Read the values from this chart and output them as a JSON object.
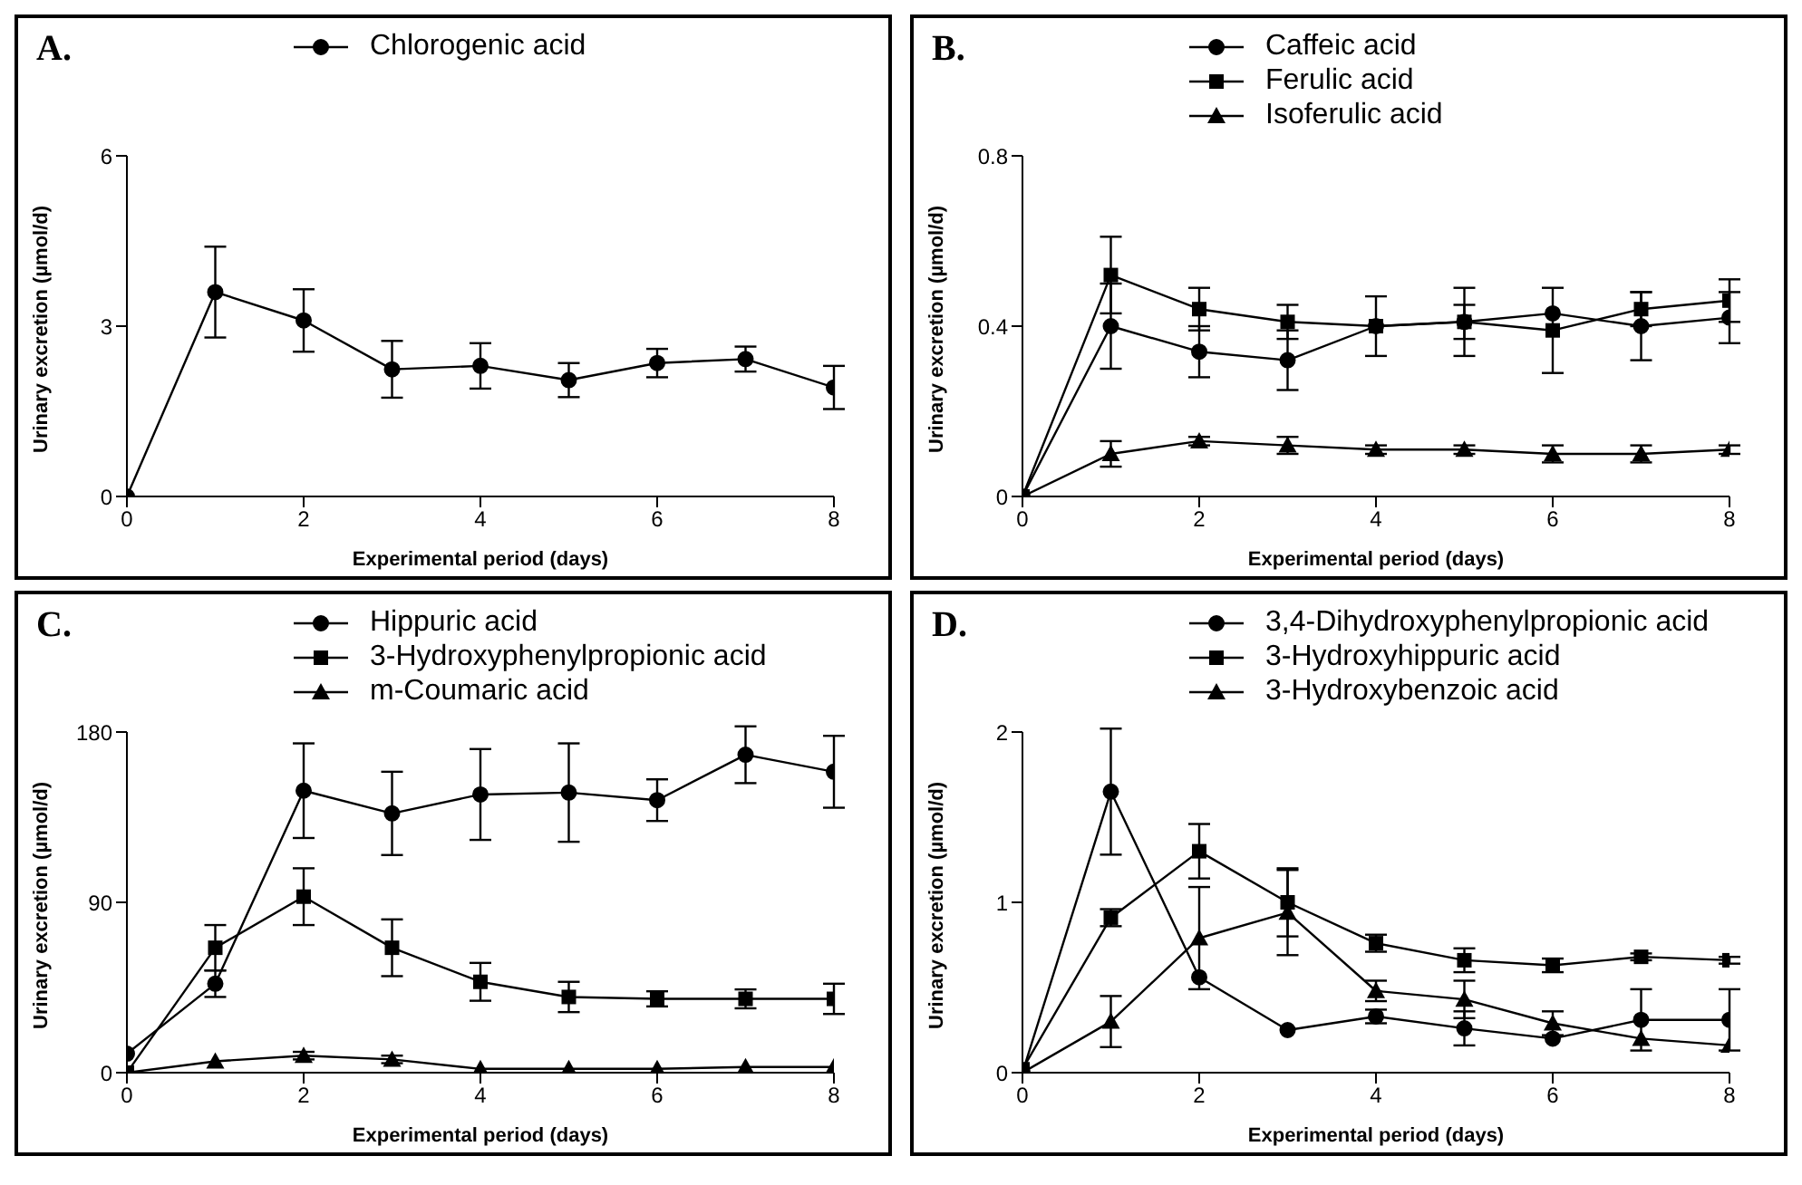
{
  "chart_data": [
    {
      "type": "line",
      "title": "A.",
      "xlabel": "Experimental period (days)",
      "ylabel": "Urinary excretion (µmol/d)",
      "x": [
        0,
        1,
        2,
        3,
        4,
        5,
        6,
        7,
        8
      ],
      "xlim": [
        0,
        8
      ],
      "xticks": [
        0,
        2,
        4,
        6,
        8
      ],
      "ylim": [
        0,
        6
      ],
      "yticks": [
        0,
        3,
        6
      ],
      "grid": false,
      "legend": "top",
      "series": [
        {
          "name": "Chlorogenic acid",
          "color": "#000000",
          "marker": "circle",
          "values": [
            0,
            3.6,
            3.1,
            2.24,
            2.3,
            2.05,
            2.35,
            2.42,
            1.92
          ],
          "errors": [
            null,
            0.8,
            0.55,
            0.5,
            0.4,
            0.3,
            0.25,
            0.22,
            0.38
          ]
        }
      ]
    },
    {
      "type": "line",
      "title": "B.",
      "xlabel": "Experimental period (days)",
      "ylabel": "Urinary excretion (µmol/d)",
      "x": [
        0,
        1,
        2,
        3,
        4,
        5,
        6,
        7,
        8
      ],
      "xlim": [
        0,
        8
      ],
      "xticks": [
        0,
        2,
        4,
        6,
        8
      ],
      "ylim": [
        0,
        0.8
      ],
      "yticks": [
        0,
        0.4,
        0.8
      ],
      "grid": false,
      "legend": "top",
      "series": [
        {
          "name": "Caffeic acid",
          "color": "#000000",
          "marker": "circle",
          "values": [
            0,
            0.4,
            0.34,
            0.32,
            0.4,
            0.41,
            0.43,
            0.4,
            0.42
          ],
          "errors": [
            null,
            0.1,
            0.06,
            0.07,
            null,
            0.08,
            null,
            0.08,
            0.06
          ]
        },
        {
          "name": "Ferulic acid",
          "color": "#000000",
          "marker": "square",
          "values": [
            0,
            0.52,
            0.44,
            0.41,
            0.4,
            0.41,
            0.39,
            0.44,
            0.46
          ],
          "errors": [
            null,
            0.09,
            0.05,
            0.04,
            0.07,
            0.04,
            0.1,
            0.04,
            0.05
          ]
        },
        {
          "name": "Isoferulic acid",
          "color": "#000000",
          "marker": "triangle",
          "values": [
            0,
            0.1,
            0.13,
            0.12,
            0.11,
            0.11,
            0.1,
            0.1,
            0.11
          ],
          "errors": [
            null,
            0.03,
            0.01,
            0.02,
            0.01,
            0.01,
            0.02,
            0.02,
            0.01
          ]
        }
      ]
    },
    {
      "type": "line",
      "title": "C.",
      "xlabel": "Experimental period (days)",
      "ylabel": "Urinary excretion (µmol/d)",
      "x": [
        0,
        1,
        2,
        3,
        4,
        5,
        6,
        7,
        8
      ],
      "xlim": [
        0,
        8
      ],
      "xticks": [
        0,
        2,
        4,
        6,
        8
      ],
      "ylim": [
        0,
        180
      ],
      "yticks": [
        0,
        90,
        180
      ],
      "grid": false,
      "legend": "top",
      "series": [
        {
          "name": "Hippuric acid",
          "color": "#000000",
          "marker": "circle",
          "values": [
            10,
            47,
            149,
            137,
            147,
            148,
            144,
            168,
            159
          ],
          "errors": [
            null,
            7,
            25,
            22,
            24,
            26,
            11,
            15,
            19
          ]
        },
        {
          "name": "3-Hydroxyphenylpropionic acid",
          "color": "#000000",
          "marker": "square",
          "values": [
            0,
            66,
            93,
            66,
            48,
            40,
            39,
            39,
            39
          ],
          "errors": [
            null,
            12,
            15,
            15,
            10,
            8,
            4,
            5,
            8
          ]
        },
        {
          "name": "m-Coumaric acid",
          "color": "#000000",
          "marker": "triangle",
          "values": [
            0,
            6,
            9,
            7,
            2,
            2,
            2,
            3,
            3
          ],
          "errors": [
            null,
            null,
            2,
            2,
            null,
            null,
            null,
            null,
            null
          ]
        }
      ]
    },
    {
      "type": "line",
      "title": "D.",
      "xlabel": "Experimental period (days)",
      "ylabel": "Urinary excretion (µmol/d)",
      "x": [
        0,
        1,
        2,
        3,
        4,
        5,
        6,
        7,
        8
      ],
      "xlim": [
        0,
        8
      ],
      "xticks": [
        0,
        2,
        4,
        6,
        8
      ],
      "ylim": [
        0,
        2
      ],
      "yticks": [
        0,
        1,
        2
      ],
      "grid": false,
      "legend": "top",
      "series": [
        {
          "name": "3,4-Dihydroxyphenylpropionic acid",
          "color": "#000000",
          "marker": "circle",
          "values": [
            0,
            1.65,
            0.56,
            0.25,
            0.33,
            0.26,
            0.2,
            0.31,
            0.31
          ],
          "errors": [
            null,
            0.37,
            null,
            null,
            0.04,
            0.1,
            null,
            0.18,
            0.18
          ]
        },
        {
          "name": "3-Hydroxyhippuric acid",
          "color": "#000000",
          "marker": "square",
          "values": [
            0.02,
            0.91,
            1.3,
            1.0,
            0.76,
            0.66,
            0.63,
            0.68,
            0.66
          ],
          "errors": [
            null,
            0.05,
            0.16,
            0.2,
            0.05,
            0.07,
            0.04,
            0.02,
            0.02
          ]
        },
        {
          "name": "3-Hydroxybenzoic acid",
          "color": "#000000",
          "marker": "triangle",
          "values": [
            0,
            0.3,
            0.79,
            0.94,
            0.48,
            0.43,
            0.29,
            0.2,
            0.16
          ],
          "errors": [
            null,
            0.15,
            0.3,
            0.25,
            0.06,
            0.11,
            0.07,
            null,
            null
          ]
        }
      ]
    }
  ]
}
